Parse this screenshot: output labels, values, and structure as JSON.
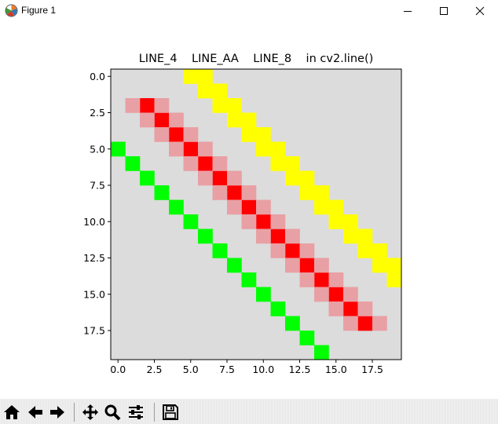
{
  "window": {
    "title": "Figure 1"
  },
  "figure": {
    "title": "LINE_4    LINE_AA    LINE_8    in cv2.line()",
    "x_ticks": [
      "0.0",
      "2.5",
      "5.0",
      "7.5",
      "10.0",
      "12.5",
      "15.0",
      "17.5"
    ],
    "y_ticks": [
      "0.0",
      "2.5",
      "5.0",
      "7.5",
      "10.0",
      "12.5",
      "15.0",
      "17.5"
    ],
    "background_color": "#dcdcdc"
  },
  "chart_data": {
    "type": "heatmap",
    "title": "LINE_4    LINE_AA    LINE_8    in cv2.line()",
    "xlim": [
      -0.5,
      19.5
    ],
    "ylim": [
      19.5,
      -0.5
    ],
    "x_ticks": [
      0.0,
      2.5,
      5.0,
      7.5,
      10.0,
      12.5,
      15.0,
      17.5
    ],
    "y_ticks": [
      0.0,
      2.5,
      5.0,
      7.5,
      10.0,
      12.5,
      15.0,
      17.5
    ],
    "series": [
      {
        "color": "#ffff00",
        "pixels": [
          [
            5,
            0
          ],
          [
            6,
            0
          ],
          [
            6,
            1
          ],
          [
            7,
            1
          ],
          [
            7,
            2
          ],
          [
            8,
            2
          ],
          [
            8,
            3
          ],
          [
            9,
            3
          ],
          [
            9,
            4
          ],
          [
            10,
            4
          ],
          [
            10,
            5
          ],
          [
            11,
            5
          ],
          [
            11,
            6
          ],
          [
            12,
            6
          ],
          [
            12,
            7
          ],
          [
            13,
            7
          ],
          [
            13,
            8
          ],
          [
            14,
            8
          ],
          [
            14,
            9
          ],
          [
            15,
            9
          ],
          [
            15,
            10
          ],
          [
            16,
            10
          ],
          [
            16,
            11
          ],
          [
            17,
            11
          ],
          [
            17,
            12
          ],
          [
            18,
            12
          ],
          [
            18,
            13
          ],
          [
            19,
            13
          ],
          [
            19,
            14
          ]
        ]
      },
      {
        "color": "#00ff00",
        "pixels": [
          [
            0,
            5
          ],
          [
            1,
            6
          ],
          [
            2,
            7
          ],
          [
            3,
            8
          ],
          [
            4,
            9
          ],
          [
            5,
            10
          ],
          [
            6,
            11
          ],
          [
            7,
            12
          ],
          [
            8,
            13
          ],
          [
            9,
            14
          ],
          [
            10,
            15
          ],
          [
            11,
            16
          ],
          [
            12,
            17
          ],
          [
            13,
            18
          ],
          [
            14,
            19
          ]
        ]
      },
      {
        "color": "#ff0000",
        "pixels": [
          [
            2,
            2
          ],
          [
            3,
            3
          ],
          [
            4,
            4
          ],
          [
            5,
            5
          ],
          [
            6,
            6
          ],
          [
            7,
            7
          ],
          [
            8,
            8
          ],
          [
            9,
            9
          ],
          [
            10,
            10
          ],
          [
            11,
            11
          ],
          [
            12,
            12
          ],
          [
            13,
            13
          ],
          [
            14,
            14
          ],
          [
            15,
            15
          ],
          [
            16,
            16
          ],
          [
            17,
            17
          ]
        ]
      },
      {
        "color": "#e8a0a4",
        "pixels": [
          [
            1,
            2
          ],
          [
            3,
            2
          ],
          [
            2,
            3
          ],
          [
            4,
            3
          ],
          [
            3,
            4
          ],
          [
            5,
            4
          ],
          [
            4,
            5
          ],
          [
            6,
            5
          ],
          [
            5,
            6
          ],
          [
            7,
            6
          ],
          [
            6,
            7
          ],
          [
            8,
            7
          ],
          [
            7,
            8
          ],
          [
            9,
            8
          ],
          [
            8,
            9
          ],
          [
            10,
            9
          ],
          [
            9,
            10
          ],
          [
            11,
            10
          ],
          [
            10,
            11
          ],
          [
            12,
            11
          ],
          [
            11,
            12
          ],
          [
            13,
            12
          ],
          [
            12,
            13
          ],
          [
            14,
            13
          ],
          [
            13,
            14
          ],
          [
            15,
            14
          ],
          [
            14,
            15
          ],
          [
            16,
            15
          ],
          [
            15,
            16
          ],
          [
            17,
            16
          ],
          [
            16,
            17
          ],
          [
            18,
            17
          ]
        ]
      }
    ]
  },
  "toolbar": {
    "buttons": [
      {
        "name": "home-button",
        "icon": "home-icon"
      },
      {
        "name": "back-button",
        "icon": "arrow-left-icon"
      },
      {
        "name": "forward-button",
        "icon": "arrow-right-icon"
      },
      {
        "name": "pan-button",
        "icon": "move-icon"
      },
      {
        "name": "zoom-button",
        "icon": "magnifier-icon"
      },
      {
        "name": "configure-subplots-button",
        "icon": "sliders-icon"
      },
      {
        "name": "save-button",
        "icon": "floppy-disk-icon"
      }
    ]
  }
}
